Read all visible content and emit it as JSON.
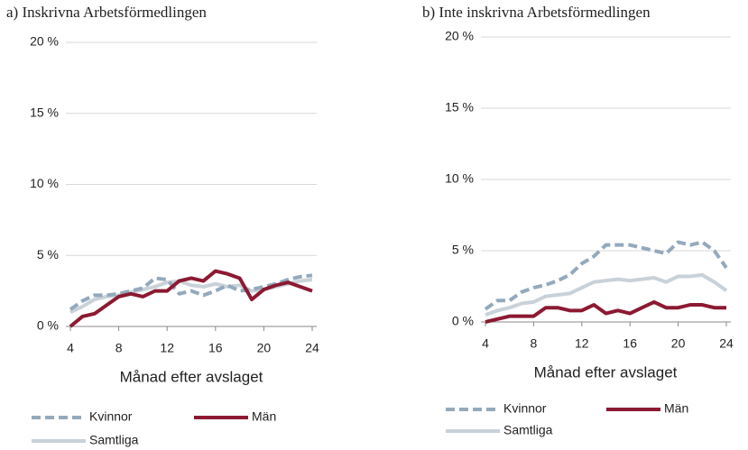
{
  "chart_data": [
    {
      "type": "line",
      "title": "a) Inskrivna Arbetsförmedlingen",
      "x_label": "Månad efter avslaget",
      "x": [
        4,
        5,
        6,
        7,
        8,
        9,
        10,
        11,
        12,
        13,
        14,
        15,
        16,
        17,
        18,
        19,
        20,
        21,
        22,
        23,
        24
      ],
      "xlim": [
        4,
        24
      ],
      "xticks": [
        4,
        8,
        12,
        16,
        20,
        24
      ],
      "ylim": [
        0,
        20
      ],
      "yticks": [
        {
          "value": 0,
          "label": "0 %"
        },
        {
          "value": 5,
          "label": "5 %"
        },
        {
          "value": 10,
          "label": "10 %"
        },
        {
          "value": 15,
          "label": "15 %"
        },
        {
          "value": 20,
          "label": "20 %"
        }
      ],
      "grid": true,
      "series": [
        {
          "name": "Kvinnor",
          "color": "#93a9bd",
          "dashed": true,
          "values": [
            1.2,
            1.8,
            2.2,
            2.2,
            2.3,
            2.5,
            2.7,
            3.4,
            3.3,
            2.3,
            2.5,
            2.2,
            2.5,
            2.9,
            2.5,
            2.6,
            2.8,
            3.0,
            3.3,
            3.5,
            3.6
          ]
        },
        {
          "name": "Män",
          "color": "#8c1932",
          "values": [
            0.0,
            0.7,
            0.9,
            1.5,
            2.1,
            2.3,
            2.1,
            2.5,
            2.5,
            3.2,
            3.4,
            3.2,
            3.9,
            3.7,
            3.4,
            1.9,
            2.6,
            2.9,
            3.1,
            2.8,
            2.5
          ]
        },
        {
          "name": "Samtliga",
          "color": "#c9d1d9",
          "values": [
            1.0,
            1.4,
            1.9,
            2.1,
            2.2,
            2.4,
            2.6,
            2.8,
            3.1,
            3.2,
            2.9,
            2.8,
            3.0,
            2.8,
            2.9,
            2.5,
            2.6,
            2.8,
            3.0,
            3.2,
            3.3
          ]
        }
      ]
    },
    {
      "type": "line",
      "title": "b) Inte inskrivna Arbetsförmedlingen",
      "x_label": "Månad efter avslaget",
      "x": [
        4,
        5,
        6,
        7,
        8,
        9,
        10,
        11,
        12,
        13,
        14,
        15,
        16,
        17,
        18,
        19,
        20,
        21,
        22,
        23,
        24
      ],
      "xlim": [
        4,
        24
      ],
      "xticks": [
        4,
        8,
        12,
        16,
        20,
        24
      ],
      "ylim": [
        0,
        20
      ],
      "yticks": [
        {
          "value": 0,
          "label": "0 %"
        },
        {
          "value": 5,
          "label": "5 %"
        },
        {
          "value": 10,
          "label": "10 %"
        },
        {
          "value": 15,
          "label": "15 %"
        },
        {
          "value": 20,
          "label": "20 %"
        }
      ],
      "grid": true,
      "series": [
        {
          "name": "Kvinnor",
          "color": "#93a9bd",
          "dashed": true,
          "values": [
            0.9,
            1.5,
            1.5,
            2.1,
            2.4,
            2.6,
            2.9,
            3.3,
            4.1,
            4.6,
            5.4,
            5.4,
            5.4,
            5.2,
            5.0,
            4.8,
            5.6,
            5.4,
            5.6,
            5.0,
            3.8
          ]
        },
        {
          "name": "Män",
          "color": "#8c1932",
          "values": [
            0.0,
            0.2,
            0.4,
            0.4,
            0.4,
            1.0,
            1.0,
            0.8,
            0.8,
            1.2,
            0.6,
            0.8,
            0.6,
            1.0,
            1.4,
            1.0,
            1.0,
            1.2,
            1.2,
            1.0,
            1.0
          ]
        },
        {
          "name": "Samtliga",
          "color": "#c9d1d9",
          "values": [
            0.5,
            0.8,
            1.0,
            1.3,
            1.4,
            1.8,
            1.9,
            2.0,
            2.4,
            2.8,
            2.9,
            3.0,
            2.9,
            3.0,
            3.1,
            2.8,
            3.2,
            3.2,
            3.3,
            2.8,
            2.2
          ]
        }
      ]
    }
  ]
}
